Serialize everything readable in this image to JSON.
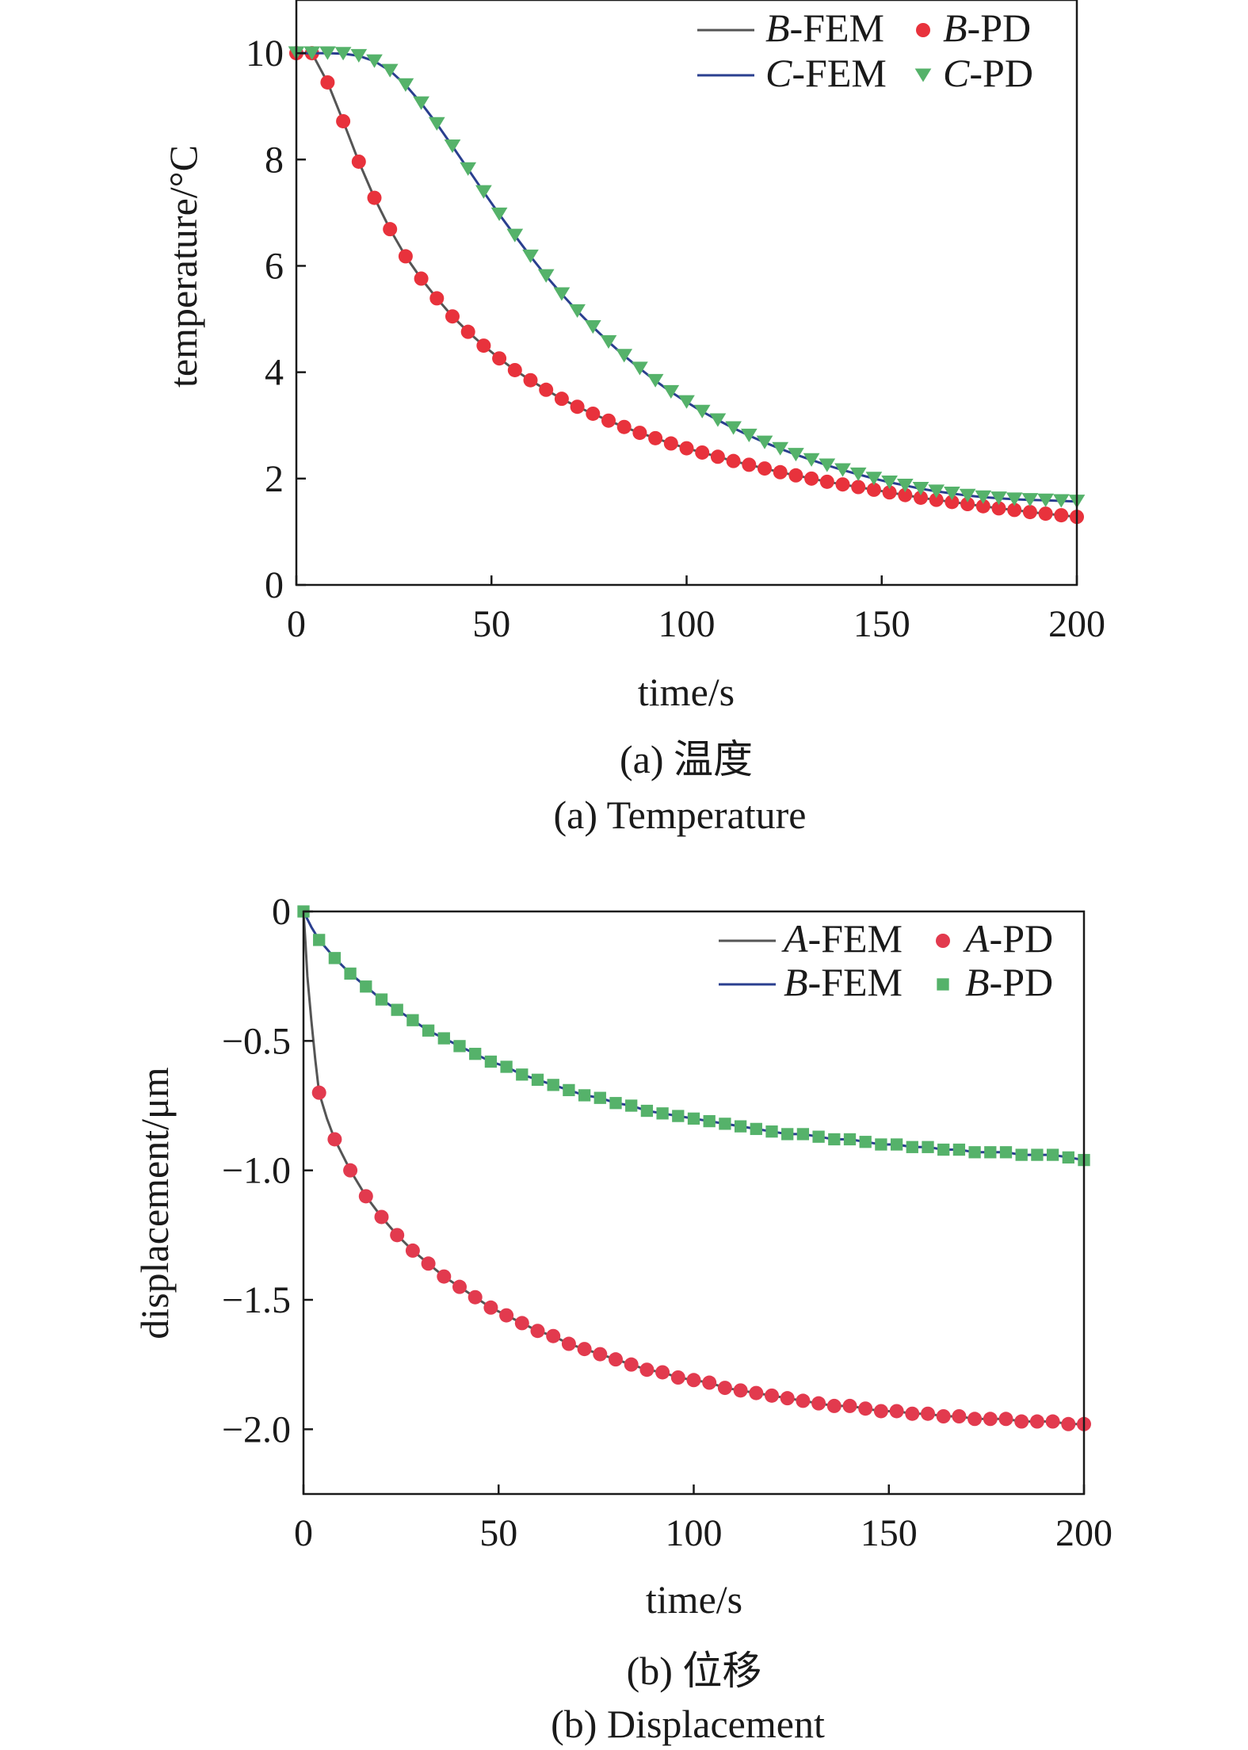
{
  "chart_data": [
    {
      "type": "line",
      "panel": "a",
      "xlabel": "time/s",
      "ylabel": "temperature/°C",
      "xlim": [
        0,
        200
      ],
      "ylim": [
        0,
        11
      ],
      "xticks": [
        "0",
        "50",
        "100",
        "150",
        "200"
      ],
      "yticks": [
        "0",
        "2",
        "4",
        "6",
        "8",
        "10"
      ],
      "caption_cn": "(a) 温度",
      "caption_en": "(a) Temperature",
      "legend_position": "top-right",
      "legend": [
        {
          "letter": "B",
          "suffix": "-FEM",
          "kind": "line",
          "color": "#555555"
        },
        {
          "letter": "B",
          "suffix": "-PD",
          "kind": "circle",
          "color": "#e8323c"
        },
        {
          "letter": "C",
          "suffix": "-FEM",
          "kind": "line",
          "color": "#2a3f8f"
        },
        {
          "letter": "C",
          "suffix": "-PD",
          "kind": "triangle",
          "color": "#55b26a"
        }
      ],
      "series": [
        {
          "name": "B-FEM",
          "kind": "line",
          "color": "#555555",
          "x": [
            0,
            4,
            8,
            12,
            16,
            20,
            24,
            28,
            32,
            36,
            40,
            44,
            48,
            52,
            56,
            60,
            64,
            68,
            72,
            76,
            80,
            84,
            88,
            92,
            96,
            100,
            104,
            108,
            112,
            116,
            120,
            124,
            128,
            132,
            136,
            140,
            144,
            148,
            152,
            156,
            160,
            164,
            168,
            172,
            176,
            180,
            184,
            188,
            192,
            196,
            200
          ],
          "y": [
            10.0,
            10.0,
            9.45,
            8.72,
            7.96,
            7.28,
            6.69,
            6.18,
            5.76,
            5.39,
            5.05,
            4.76,
            4.5,
            4.26,
            4.04,
            3.85,
            3.67,
            3.5,
            3.35,
            3.22,
            3.09,
            2.97,
            2.86,
            2.76,
            2.66,
            2.57,
            2.49,
            2.41,
            2.33,
            2.26,
            2.19,
            2.12,
            2.06,
            2.0,
            1.94,
            1.89,
            1.84,
            1.79,
            1.74,
            1.69,
            1.64,
            1.6,
            1.56,
            1.52,
            1.48,
            1.44,
            1.41,
            1.37,
            1.34,
            1.31,
            1.28
          ]
        },
        {
          "name": "B-PD",
          "kind": "circle",
          "color": "#e8323c",
          "x": [
            0,
            4,
            8,
            12,
            16,
            20,
            24,
            28,
            32,
            36,
            40,
            44,
            48,
            52,
            56,
            60,
            64,
            68,
            72,
            76,
            80,
            84,
            88,
            92,
            96,
            100,
            104,
            108,
            112,
            116,
            120,
            124,
            128,
            132,
            136,
            140,
            144,
            148,
            152,
            156,
            160,
            164,
            168,
            172,
            176,
            180,
            184,
            188,
            192,
            196,
            200
          ],
          "y": [
            10.0,
            10.0,
            9.45,
            8.72,
            7.96,
            7.28,
            6.69,
            6.18,
            5.76,
            5.39,
            5.05,
            4.76,
            4.5,
            4.26,
            4.04,
            3.85,
            3.67,
            3.5,
            3.35,
            3.22,
            3.09,
            2.97,
            2.86,
            2.76,
            2.66,
            2.57,
            2.49,
            2.41,
            2.33,
            2.26,
            2.19,
            2.12,
            2.06,
            2.0,
            1.94,
            1.89,
            1.84,
            1.79,
            1.74,
            1.69,
            1.64,
            1.6,
            1.56,
            1.52,
            1.48,
            1.44,
            1.41,
            1.37,
            1.34,
            1.31,
            1.28
          ]
        },
        {
          "name": "C-FEM",
          "kind": "line",
          "color": "#2a3f8f",
          "x": [
            0,
            4,
            8,
            12,
            16,
            20,
            24,
            28,
            32,
            36,
            40,
            44,
            48,
            52,
            56,
            60,
            64,
            68,
            72,
            76,
            80,
            84,
            88,
            92,
            96,
            100,
            104,
            108,
            112,
            116,
            120,
            124,
            128,
            132,
            136,
            140,
            144,
            148,
            152,
            156,
            160,
            164,
            168,
            172,
            176,
            180,
            184,
            188,
            192,
            196,
            200
          ],
          "y": [
            10.0,
            10.0,
            10.0,
            9.99,
            9.95,
            9.85,
            9.67,
            9.4,
            9.06,
            8.67,
            8.25,
            7.82,
            7.39,
            6.97,
            6.57,
            6.18,
            5.81,
            5.47,
            5.15,
            4.85,
            4.57,
            4.31,
            4.07,
            3.84,
            3.63,
            3.44,
            3.26,
            3.1,
            2.95,
            2.81,
            2.68,
            2.56,
            2.45,
            2.35,
            2.25,
            2.16,
            2.08,
            2.0,
            1.93,
            1.87,
            1.81,
            1.76,
            1.72,
            1.68,
            1.65,
            1.63,
            1.61,
            1.6,
            1.59,
            1.58,
            1.57
          ]
        },
        {
          "name": "C-PD",
          "kind": "triangle",
          "color": "#55b26a",
          "x": [
            0,
            4,
            8,
            12,
            16,
            20,
            24,
            28,
            32,
            36,
            40,
            44,
            48,
            52,
            56,
            60,
            64,
            68,
            72,
            76,
            80,
            84,
            88,
            92,
            96,
            100,
            104,
            108,
            112,
            116,
            120,
            124,
            128,
            132,
            136,
            140,
            144,
            148,
            152,
            156,
            160,
            164,
            168,
            172,
            176,
            180,
            184,
            188,
            192,
            196,
            200
          ],
          "y": [
            10.0,
            10.0,
            10.0,
            9.99,
            9.95,
            9.85,
            9.67,
            9.4,
            9.06,
            8.67,
            8.25,
            7.82,
            7.39,
            6.97,
            6.57,
            6.18,
            5.81,
            5.47,
            5.15,
            4.85,
            4.57,
            4.31,
            4.07,
            3.84,
            3.63,
            3.44,
            3.26,
            3.1,
            2.95,
            2.81,
            2.68,
            2.56,
            2.45,
            2.35,
            2.25,
            2.16,
            2.08,
            2.0,
            1.93,
            1.87,
            1.81,
            1.76,
            1.72,
            1.68,
            1.65,
            1.63,
            1.61,
            1.6,
            1.59,
            1.58,
            1.57
          ]
        }
      ]
    },
    {
      "type": "line",
      "panel": "b",
      "xlabel": "time/s",
      "ylabel": "displacement/μm",
      "xlim": [
        0,
        200
      ],
      "ylim": [
        -2.25,
        0
      ],
      "xticks": [
        "0",
        "50",
        "100",
        "150",
        "200"
      ],
      "yticks": [
        "0",
        "−0.5",
        "−1.0",
        "−1.5",
        "−2.0"
      ],
      "caption_cn": "(b) 位移",
      "caption_en": "(b) Displacement",
      "legend_position": "top-right",
      "legend": [
        {
          "letter": "A",
          "suffix": "-FEM",
          "kind": "line",
          "color": "#555555"
        },
        {
          "letter": "A",
          "suffix": "-PD",
          "kind": "circle",
          "color": "#e23a4e"
        },
        {
          "letter": "B",
          "suffix": "-FEM",
          "kind": "line",
          "color": "#2a3f8f"
        },
        {
          "letter": "B",
          "suffix": "-PD",
          "kind": "square",
          "color": "#55b26a"
        }
      ],
      "series": [
        {
          "name": "A-FEM",
          "kind": "line",
          "color": "#555555",
          "x": [
            0,
            0.5,
            1,
            2,
            3,
            4,
            6,
            8,
            12,
            16,
            20,
            24,
            28,
            32,
            36,
            40,
            44,
            48,
            52,
            56,
            60,
            64,
            68,
            72,
            76,
            80,
            84,
            88,
            92,
            96,
            100,
            104,
            108,
            112,
            116,
            120,
            124,
            128,
            132,
            136,
            140,
            144,
            148,
            152,
            156,
            160,
            164,
            168,
            172,
            176,
            180,
            184,
            188,
            192,
            196,
            200
          ],
          "y": [
            0,
            -0.12,
            -0.25,
            -0.42,
            -0.57,
            -0.7,
            -0.8,
            -0.88,
            -1.0,
            -1.1,
            -1.18,
            -1.25,
            -1.31,
            -1.36,
            -1.41,
            -1.45,
            -1.49,
            -1.53,
            -1.56,
            -1.59,
            -1.62,
            -1.64,
            -1.67,
            -1.69,
            -1.71,
            -1.73,
            -1.75,
            -1.77,
            -1.78,
            -1.8,
            -1.81,
            -1.82,
            -1.84,
            -1.85,
            -1.86,
            -1.87,
            -1.88,
            -1.89,
            -1.9,
            -1.91,
            -1.91,
            -1.92,
            -1.93,
            -1.93,
            -1.94,
            -1.94,
            -1.95,
            -1.95,
            -1.96,
            -1.96,
            -1.96,
            -1.97,
            -1.97,
            -1.97,
            -1.98,
            -1.98
          ]
        },
        {
          "name": "A-PD",
          "kind": "circle",
          "color": "#e23a4e",
          "x": [
            4,
            8,
            12,
            16,
            20,
            24,
            28,
            32,
            36,
            40,
            44,
            48,
            52,
            56,
            60,
            64,
            68,
            72,
            76,
            80,
            84,
            88,
            92,
            96,
            100,
            104,
            108,
            112,
            116,
            120,
            124,
            128,
            132,
            136,
            140,
            144,
            148,
            152,
            156,
            160,
            164,
            168,
            172,
            176,
            180,
            184,
            188,
            192,
            196,
            200
          ],
          "y": [
            -0.7,
            -0.88,
            -1.0,
            -1.1,
            -1.18,
            -1.25,
            -1.31,
            -1.36,
            -1.41,
            -1.45,
            -1.49,
            -1.53,
            -1.56,
            -1.59,
            -1.62,
            -1.64,
            -1.67,
            -1.69,
            -1.71,
            -1.73,
            -1.75,
            -1.77,
            -1.78,
            -1.8,
            -1.81,
            -1.82,
            -1.84,
            -1.85,
            -1.86,
            -1.87,
            -1.88,
            -1.89,
            -1.9,
            -1.91,
            -1.91,
            -1.92,
            -1.93,
            -1.93,
            -1.94,
            -1.94,
            -1.95,
            -1.95,
            -1.96,
            -1.96,
            -1.96,
            -1.97,
            -1.97,
            -1.97,
            -1.98,
            -1.98
          ]
        },
        {
          "name": "B-FEM",
          "kind": "line",
          "color": "#2a3f8f",
          "x": [
            0,
            2,
            4,
            8,
            12,
            16,
            20,
            24,
            28,
            32,
            36,
            40,
            44,
            48,
            52,
            56,
            60,
            64,
            68,
            72,
            76,
            80,
            84,
            88,
            92,
            96,
            100,
            104,
            108,
            112,
            116,
            120,
            124,
            128,
            132,
            136,
            140,
            144,
            148,
            152,
            156,
            160,
            164,
            168,
            172,
            176,
            180,
            184,
            188,
            192,
            196,
            200
          ],
          "y": [
            0,
            -0.06,
            -0.11,
            -0.18,
            -0.24,
            -0.29,
            -0.34,
            -0.38,
            -0.42,
            -0.46,
            -0.49,
            -0.52,
            -0.55,
            -0.58,
            -0.6,
            -0.63,
            -0.65,
            -0.67,
            -0.69,
            -0.71,
            -0.72,
            -0.74,
            -0.75,
            -0.77,
            -0.78,
            -0.79,
            -0.8,
            -0.81,
            -0.82,
            -0.83,
            -0.84,
            -0.85,
            -0.86,
            -0.86,
            -0.87,
            -0.88,
            -0.88,
            -0.89,
            -0.9,
            -0.9,
            -0.91,
            -0.91,
            -0.92,
            -0.92,
            -0.93,
            -0.93,
            -0.93,
            -0.94,
            -0.94,
            -0.94,
            -0.95,
            -0.96
          ]
        },
        {
          "name": "B-PD",
          "kind": "square",
          "color": "#55b26a",
          "x": [
            0,
            4,
            8,
            12,
            16,
            20,
            24,
            28,
            32,
            36,
            40,
            44,
            48,
            52,
            56,
            60,
            64,
            68,
            72,
            76,
            80,
            84,
            88,
            92,
            96,
            100,
            104,
            108,
            112,
            116,
            120,
            124,
            128,
            132,
            136,
            140,
            144,
            148,
            152,
            156,
            160,
            164,
            168,
            172,
            176,
            180,
            184,
            188,
            192,
            196,
            200
          ],
          "y": [
            0,
            -0.11,
            -0.18,
            -0.24,
            -0.29,
            -0.34,
            -0.38,
            -0.42,
            -0.46,
            -0.49,
            -0.52,
            -0.55,
            -0.58,
            -0.6,
            -0.63,
            -0.65,
            -0.67,
            -0.69,
            -0.71,
            -0.72,
            -0.74,
            -0.75,
            -0.77,
            -0.78,
            -0.79,
            -0.8,
            -0.81,
            -0.82,
            -0.83,
            -0.84,
            -0.85,
            -0.86,
            -0.86,
            -0.87,
            -0.88,
            -0.88,
            -0.89,
            -0.9,
            -0.9,
            -0.91,
            -0.91,
            -0.92,
            -0.92,
            -0.93,
            -0.93,
            -0.93,
            -0.94,
            -0.94,
            -0.94,
            -0.95,
            -0.96
          ]
        }
      ]
    }
  ]
}
